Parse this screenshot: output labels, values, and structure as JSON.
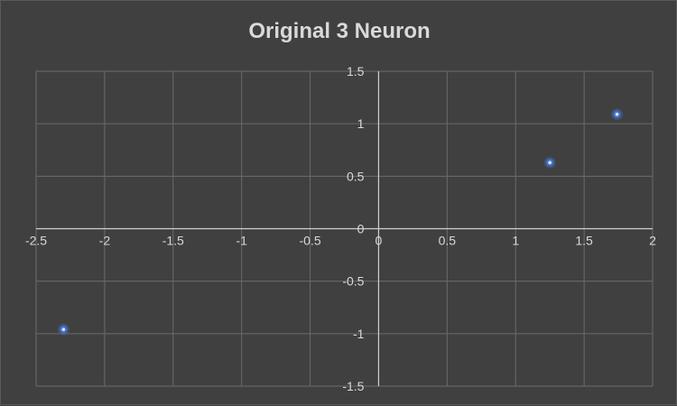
{
  "chart_data": {
    "type": "scatter",
    "title": "Original 3 Neuron",
    "xlabel": "",
    "ylabel": "",
    "xlim": [
      -2.5,
      2
    ],
    "ylim": [
      -1.5,
      1.5
    ],
    "x_ticks": [
      -2.5,
      -2,
      -1.5,
      -1,
      -0.5,
      0,
      0.5,
      1,
      1.5,
      2
    ],
    "y_ticks": [
      -1.5,
      -1,
      -0.5,
      0,
      0.5,
      1,
      1.5
    ],
    "x_tick_labels": [
      "-2.5",
      "-2",
      "-1.5",
      "-1",
      "-0.5",
      "0",
      "0.5",
      "1",
      "1.5",
      "2"
    ],
    "y_tick_labels": [
      "-1.5",
      "-1",
      "-0.5",
      "0",
      "0.5",
      "1",
      "1.5"
    ],
    "grid": true,
    "legend": "none",
    "series": [
      {
        "points": [
          {
            "x": -2.3,
            "y": -0.96
          },
          {
            "x": 1.25,
            "y": 0.63
          },
          {
            "x": 1.74,
            "y": 1.09
          }
        ],
        "color": "#4472c4"
      }
    ],
    "colors": {
      "background": "#404040",
      "grid": "#6b6b6b",
      "axis": "#d0d0d0",
      "text": "#d9d9d9",
      "marker": "#4472c4"
    }
  }
}
